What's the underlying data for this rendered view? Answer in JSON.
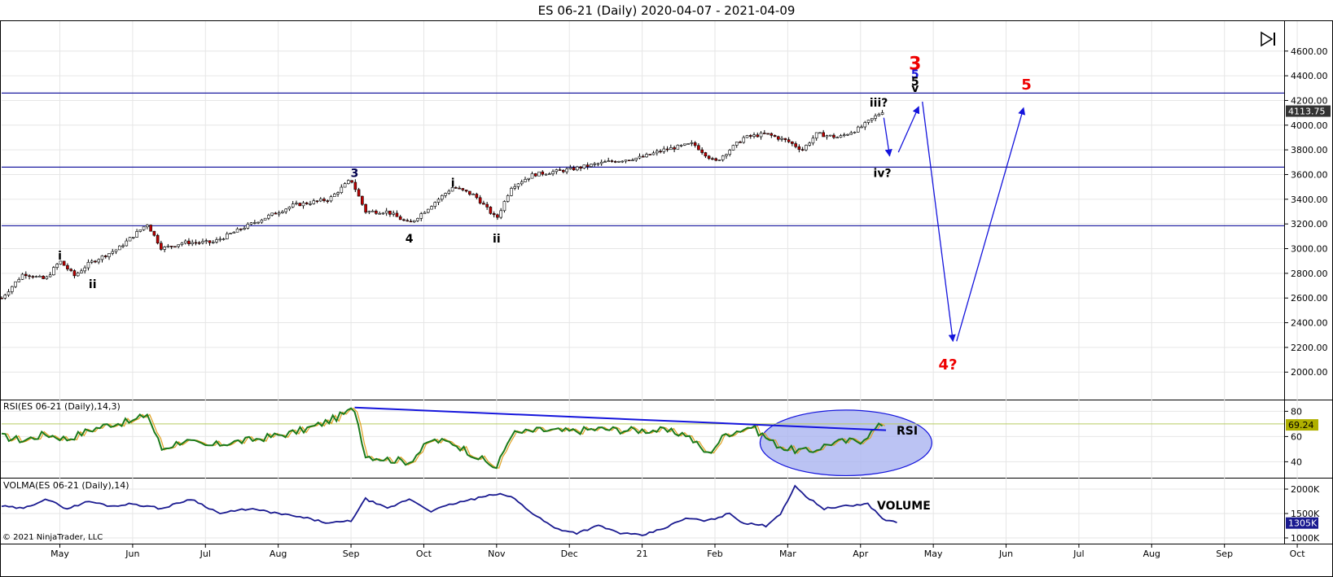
{
  "title": "ES 06-21 (Daily)  2020-04-07 - 2021-04-09",
  "copyright": "© 2021 NinjaTrader, LLC",
  "colors": {
    "price_line": "#1a1aa0",
    "rsi": "#1a7a1a",
    "rsi_signal": "#e0a020",
    "rsi_level": "#b8cc60",
    "volma": "#1a1a90",
    "ellipse_fill": "#aab4f0",
    "annotation_red": "#ee0000",
    "projection": "#1414dc"
  },
  "x_axis": {
    "labels": [
      {
        "t": 0.8,
        "text": "May"
      },
      {
        "t": 1.8,
        "text": "Jun"
      },
      {
        "t": 2.8,
        "text": "Jul"
      },
      {
        "t": 3.8,
        "text": "Aug"
      },
      {
        "t": 4.8,
        "text": "Sep"
      },
      {
        "t": 5.8,
        "text": "Oct"
      },
      {
        "t": 6.8,
        "text": "Nov"
      },
      {
        "t": 7.8,
        "text": "Dec"
      },
      {
        "t": 8.8,
        "text": "21"
      },
      {
        "t": 9.8,
        "text": "Feb"
      },
      {
        "t": 10.8,
        "text": "Mar"
      },
      {
        "t": 11.8,
        "text": "Apr"
      },
      {
        "t": 12.8,
        "text": "May"
      },
      {
        "t": 13.8,
        "text": "Jun"
      },
      {
        "t": 14.8,
        "text": "Jul"
      },
      {
        "t": 15.8,
        "text": "Aug"
      },
      {
        "t": 16.8,
        "text": "Sep"
      },
      {
        "t": 17.8,
        "text": "Oct"
      }
    ]
  },
  "chart_data": [
    {
      "type": "candlestick",
      "title": "ES 06-21 (Daily)  2020-04-07 - 2021-04-09",
      "ylim": [
        1850,
        4750
      ],
      "yticks": [
        "4600.00",
        "4400.00",
        "4200.00",
        "4000.00",
        "3800.00",
        "3600.00",
        "3400.00",
        "3200.00",
        "3000.00",
        "2800.00",
        "2600.00",
        "2400.00",
        "2200.00",
        "2000.00"
      ],
      "last_price": "4113.75",
      "price_path": [
        [
          0,
          2600
        ],
        [
          0.3,
          2800
        ],
        [
          0.6,
          2750
        ],
        [
          0.8,
          2900
        ],
        [
          1.0,
          2780
        ],
        [
          1.2,
          2880
        ],
        [
          1.6,
          3000
        ],
        [
          2.0,
          3200
        ],
        [
          2.2,
          3000
        ],
        [
          2.5,
          3050
        ],
        [
          2.9,
          3050
        ],
        [
          3.5,
          3220
        ],
        [
          4.0,
          3350
        ],
        [
          4.5,
          3400
        ],
        [
          4.8,
          3560
        ],
        [
          5.0,
          3300
        ],
        [
          5.3,
          3300
        ],
        [
          5.6,
          3200
        ],
        [
          5.9,
          3350
        ],
        [
          6.2,
          3500
        ],
        [
          6.5,
          3430
        ],
        [
          6.8,
          3240
        ],
        [
          7.0,
          3500
        ],
        [
          7.3,
          3600
        ],
        [
          7.8,
          3640
        ],
        [
          8.3,
          3700
        ],
        [
          8.8,
          3740
        ],
        [
          9.1,
          3800
        ],
        [
          9.5,
          3850
        ],
        [
          9.8,
          3700
        ],
        [
          10.2,
          3900
        ],
        [
          10.5,
          3930
        ],
        [
          10.8,
          3870
        ],
        [
          11.0,
          3800
        ],
        [
          11.2,
          3930
        ],
        [
          11.5,
          3900
        ],
        [
          11.8,
          3980
        ],
        [
          12.1,
          4113
        ]
      ],
      "horizontal_lines": [
        4260,
        3660,
        3185
      ],
      "wave_labels": [
        {
          "text": "i",
          "t": 0.8,
          "y": 2910,
          "color": "#000"
        },
        {
          "text": "ii",
          "t": 1.25,
          "y": 2680,
          "color": "#000"
        },
        {
          "text": "3",
          "t": 4.85,
          "y": 3580,
          "color": "#00004d"
        },
        {
          "text": "4",
          "t": 5.6,
          "y": 3050,
          "color": "#000"
        },
        {
          "text": "i",
          "t": 6.2,
          "y": 3500,
          "color": "#000"
        },
        {
          "text": "ii",
          "t": 6.8,
          "y": 3050,
          "color": "#000"
        },
        {
          "text": "iii?",
          "t": 12.05,
          "y": 4150,
          "color": "#000"
        },
        {
          "text": "iv?",
          "t": 12.1,
          "y": 3580,
          "color": "#000"
        },
        {
          "text": "3",
          "t": 12.55,
          "y": 4450,
          "color": "#ee0000",
          "size": 22
        },
        {
          "text": "5",
          "t": 12.55,
          "y": 4380,
          "color": "#1414dc"
        },
        {
          "text": "5",
          "t": 12.55,
          "y": 4320,
          "color": "#000"
        },
        {
          "text": "v",
          "t": 12.55,
          "y": 4270,
          "color": "#000"
        },
        {
          "text": "5",
          "t": 14.08,
          "y": 4290,
          "color": "#ee0000",
          "size": 18
        },
        {
          "text": "4?",
          "t": 13.0,
          "y": 2020,
          "color": "#ee0000",
          "size": 18
        }
      ],
      "projection_arrows": [
        [
          [
            12.12,
            4060
          ],
          [
            12.2,
            3750
          ]
        ],
        [
          [
            12.32,
            3780
          ],
          [
            12.6,
            4150
          ]
        ],
        [
          [
            12.65,
            4190
          ],
          [
            13.07,
            2250
          ]
        ],
        [
          [
            13.12,
            2250
          ],
          [
            14.04,
            4140
          ]
        ]
      ]
    },
    {
      "type": "line",
      "indicator": "RSI(ES 06-21 (Daily),14,3)",
      "ylim": [
        28,
        88
      ],
      "yticks": [
        "80",
        "60",
        "40"
      ],
      "overbought_level": 70,
      "last_value": "69.24",
      "label": "RSI",
      "values_path": [
        [
          0,
          60
        ],
        [
          0.3,
          57
        ],
        [
          0.6,
          62
        ],
        [
          0.9,
          58
        ],
        [
          1.2,
          65
        ],
        [
          1.5,
          70
        ],
        [
          1.8,
          72
        ],
        [
          2.0,
          78
        ],
        [
          2.2,
          50
        ],
        [
          2.5,
          57
        ],
        [
          2.8,
          52
        ],
        [
          3.1,
          55
        ],
        [
          3.4,
          57
        ],
        [
          3.7,
          60
        ],
        [
          4.0,
          63
        ],
        [
          4.3,
          68
        ],
        [
          4.6,
          75
        ],
        [
          4.85,
          82
        ],
        [
          5.0,
          45
        ],
        [
          5.3,
          42
        ],
        [
          5.6,
          40
        ],
        [
          5.9,
          57
        ],
        [
          6.2,
          55
        ],
        [
          6.5,
          45
        ],
        [
          6.8,
          35
        ],
        [
          7.0,
          62
        ],
        [
          7.4,
          65
        ],
        [
          7.8,
          64
        ],
        [
          8.2,
          66
        ],
        [
          8.6,
          65
        ],
        [
          9.0,
          65
        ],
        [
          9.4,
          62
        ],
        [
          9.7,
          46
        ],
        [
          9.95,
          62
        ],
        [
          10.3,
          68
        ],
        [
          10.6,
          55
        ],
        [
          10.8,
          50
        ],
        [
          11.1,
          48
        ],
        [
          11.4,
          55
        ],
        [
          11.8,
          57
        ],
        [
          12.1,
          70
        ]
      ],
      "trendline": [
        [
          4.85,
          83
        ],
        [
          12.15,
          65
        ]
      ],
      "highlight_ellipse": {
        "t": 11.6,
        "y": 55,
        "rt": 1.18,
        "ry": 26
      }
    },
    {
      "type": "line",
      "indicator": "VOLMA(ES 06-21 (Daily),14)",
      "ylim": [
        900000,
        2200000
      ],
      "yticks": [
        "2000K",
        "1500K",
        "1000K"
      ],
      "last_value": "1305K",
      "label": "VOLUME",
      "values_path": [
        [
          0,
          1650000
        ],
        [
          0.3,
          1600000
        ],
        [
          0.6,
          1800000
        ],
        [
          0.9,
          1600000
        ],
        [
          1.2,
          1750000
        ],
        [
          1.5,
          1650000
        ],
        [
          1.8,
          1700000
        ],
        [
          2.2,
          1600000
        ],
        [
          2.6,
          1800000
        ],
        [
          3.0,
          1500000
        ],
        [
          3.4,
          1600000
        ],
        [
          3.8,
          1500000
        ],
        [
          4.2,
          1400000
        ],
        [
          4.5,
          1300000
        ],
        [
          4.8,
          1350000
        ],
        [
          5.0,
          1800000
        ],
        [
          5.3,
          1600000
        ],
        [
          5.6,
          1800000
        ],
        [
          5.9,
          1550000
        ],
        [
          6.2,
          1700000
        ],
        [
          6.5,
          1800000
        ],
        [
          6.8,
          1900000
        ],
        [
          7.0,
          1850000
        ],
        [
          7.3,
          1500000
        ],
        [
          7.6,
          1200000
        ],
        [
          7.9,
          1100000
        ],
        [
          8.2,
          1250000
        ],
        [
          8.5,
          1100000
        ],
        [
          8.8,
          1050000
        ],
        [
          9.1,
          1200000
        ],
        [
          9.4,
          1400000
        ],
        [
          9.7,
          1350000
        ],
        [
          10.0,
          1500000
        ],
        [
          10.2,
          1300000
        ],
        [
          10.5,
          1250000
        ],
        [
          10.7,
          1500000
        ],
        [
          10.9,
          2050000
        ],
        [
          11.1,
          1800000
        ],
        [
          11.3,
          1600000
        ],
        [
          11.6,
          1650000
        ],
        [
          11.9,
          1700000
        ],
        [
          12.1,
          1400000
        ],
        [
          12.3,
          1305000
        ]
      ]
    }
  ]
}
